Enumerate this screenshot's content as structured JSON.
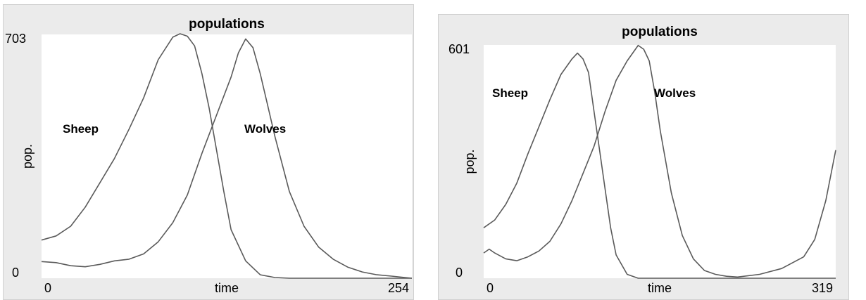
{
  "chart_data": [
    {
      "type": "line",
      "title": "populations",
      "xlabel": "time",
      "ylabel": "pop.",
      "xlim": [
        0,
        254
      ],
      "ylim": [
        0,
        703
      ],
      "x_tick_labels": [
        "0",
        "254"
      ],
      "y_tick_labels": [
        "0",
        "703"
      ],
      "series": [
        {
          "name": "Sheep",
          "x": [
            0,
            10,
            20,
            30,
            40,
            50,
            60,
            70,
            80,
            90,
            95,
            100,
            105,
            110,
            115,
            120,
            125,
            130,
            140,
            150,
            160,
            170,
            180,
            200,
            220,
            240,
            254
          ],
          "y": [
            110,
            122,
            150,
            205,
            275,
            345,
            430,
            520,
            630,
            695,
            705,
            698,
            670,
            590,
            490,
            370,
            250,
            140,
            50,
            10,
            2,
            0,
            0,
            0,
            0,
            0,
            0
          ]
        },
        {
          "name": "Wolves",
          "x": [
            0,
            10,
            20,
            30,
            40,
            50,
            60,
            70,
            80,
            90,
            100,
            110,
            120,
            130,
            135,
            140,
            145,
            150,
            155,
            160,
            170,
            180,
            190,
            200,
            210,
            220,
            230,
            240,
            254
          ],
          "y": [
            48,
            45,
            36,
            33,
            40,
            50,
            55,
            70,
            105,
            160,
            240,
            360,
            470,
            580,
            650,
            690,
            665,
            590,
            500,
            410,
            250,
            150,
            90,
            55,
            32,
            18,
            10,
            6,
            0
          ]
        }
      ]
    },
    {
      "type": "line",
      "title": "populations",
      "xlabel": "time",
      "ylabel": "pop.",
      "xlim": [
        0,
        319
      ],
      "ylim": [
        0,
        601
      ],
      "x_tick_labels": [
        "0",
        "319"
      ],
      "y_tick_labels": [
        "0",
        "601"
      ],
      "series": [
        {
          "name": "Sheep",
          "x": [
            0,
            10,
            20,
            30,
            40,
            50,
            60,
            70,
            80,
            85,
            90,
            95,
            100,
            105,
            110,
            115,
            120,
            130,
            140,
            150,
            200,
            250,
            300,
            319
          ],
          "y": [
            130,
            150,
            190,
            245,
            320,
            390,
            460,
            525,
            565,
            580,
            565,
            530,
            430,
            330,
            230,
            130,
            60,
            10,
            0,
            0,
            0,
            0,
            0,
            0
          ]
        },
        {
          "name": "Wolves",
          "x": [
            0,
            5,
            10,
            20,
            30,
            40,
            50,
            60,
            70,
            80,
            90,
            100,
            110,
            120,
            130,
            140,
            145,
            150,
            155,
            160,
            170,
            180,
            190,
            200,
            210,
            220,
            230,
            250,
            270,
            290,
            300,
            310,
            319
          ],
          "y": [
            65,
            75,
            65,
            50,
            45,
            55,
            70,
            95,
            140,
            200,
            270,
            340,
            430,
            510,
            560,
            600,
            590,
            560,
            480,
            380,
            220,
            110,
            50,
            20,
            10,
            5,
            3,
            10,
            25,
            55,
            100,
            200,
            330
          ]
        }
      ]
    }
  ]
}
